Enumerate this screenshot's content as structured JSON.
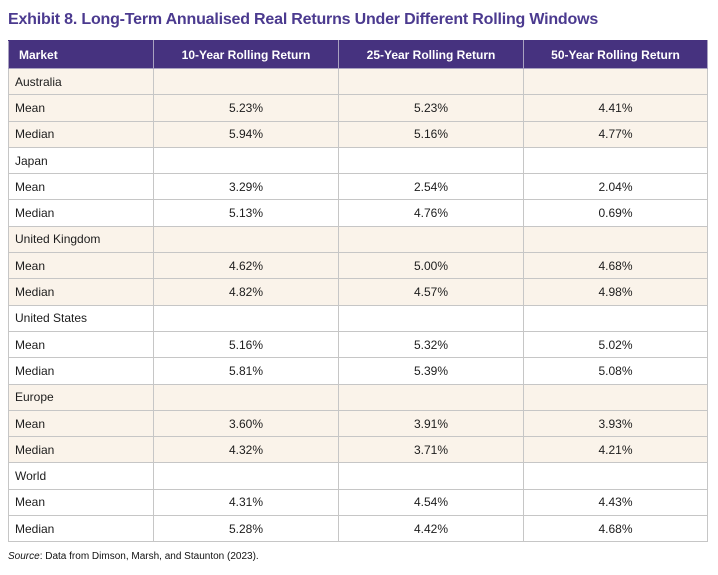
{
  "title": "Exhibit 8. Long-Term Annualised Real Returns Under Different Rolling Windows",
  "source": {
    "label": "Source",
    "text": ": Data from Dimson, Marsh, and Staunton (2023)."
  },
  "colors": {
    "title_color": "#4b3a8f",
    "header_bg": "#46327f",
    "header_text": "#ffffff",
    "shaded_row_bg": "#faf3ea",
    "white_row_bg": "#ffffff",
    "border_color": "#c6c6c6",
    "body_text": "#1c1c1c"
  },
  "chart_data": {
    "type": "table",
    "title": "Exhibit 8. Long-Term Annualised Real Returns Under Different Rolling Windows",
    "columns": [
      "Market",
      "10-Year Rolling Return",
      "25-Year Rolling Return",
      "50-Year Rolling Return"
    ],
    "groups": [
      {
        "market": "Australia",
        "shaded": true,
        "rows": [
          {
            "label": "Mean",
            "values": [
              "5.23%",
              "5.23%",
              "4.41%"
            ]
          },
          {
            "label": "Median",
            "values": [
              "5.94%",
              "5.16%",
              "4.77%"
            ]
          }
        ]
      },
      {
        "market": "Japan",
        "shaded": false,
        "rows": [
          {
            "label": "Mean",
            "values": [
              "3.29%",
              "2.54%",
              "2.04%"
            ]
          },
          {
            "label": "Median",
            "values": [
              "5.13%",
              "4.76%",
              "0.69%"
            ]
          }
        ]
      },
      {
        "market": "United Kingdom",
        "shaded": true,
        "rows": [
          {
            "label": "Mean",
            "values": [
              "4.62%",
              "5.00%",
              "4.68%"
            ]
          },
          {
            "label": "Median",
            "values": [
              "4.82%",
              "4.57%",
              "4.98%"
            ]
          }
        ]
      },
      {
        "market": "United States",
        "shaded": false,
        "rows": [
          {
            "label": "Mean",
            "values": [
              "5.16%",
              "5.32%",
              "5.02%"
            ]
          },
          {
            "label": "Median",
            "values": [
              "5.81%",
              "5.39%",
              "5.08%"
            ]
          }
        ]
      },
      {
        "market": "Europe",
        "shaded": true,
        "rows": [
          {
            "label": "Mean",
            "values": [
              "3.60%",
              "3.91%",
              "3.93%"
            ]
          },
          {
            "label": "Median",
            "values": [
              "4.32%",
              "3.71%",
              "4.21%"
            ]
          }
        ]
      },
      {
        "market": "World",
        "shaded": false,
        "rows": [
          {
            "label": "Mean",
            "values": [
              "4.31%",
              "4.54%",
              "4.43%"
            ]
          },
          {
            "label": "Median",
            "values": [
              "5.28%",
              "4.42%",
              "4.68%"
            ]
          }
        ]
      }
    ],
    "source_note": "Source: Data from Dimson, Marsh, and Staunton (2023)."
  }
}
